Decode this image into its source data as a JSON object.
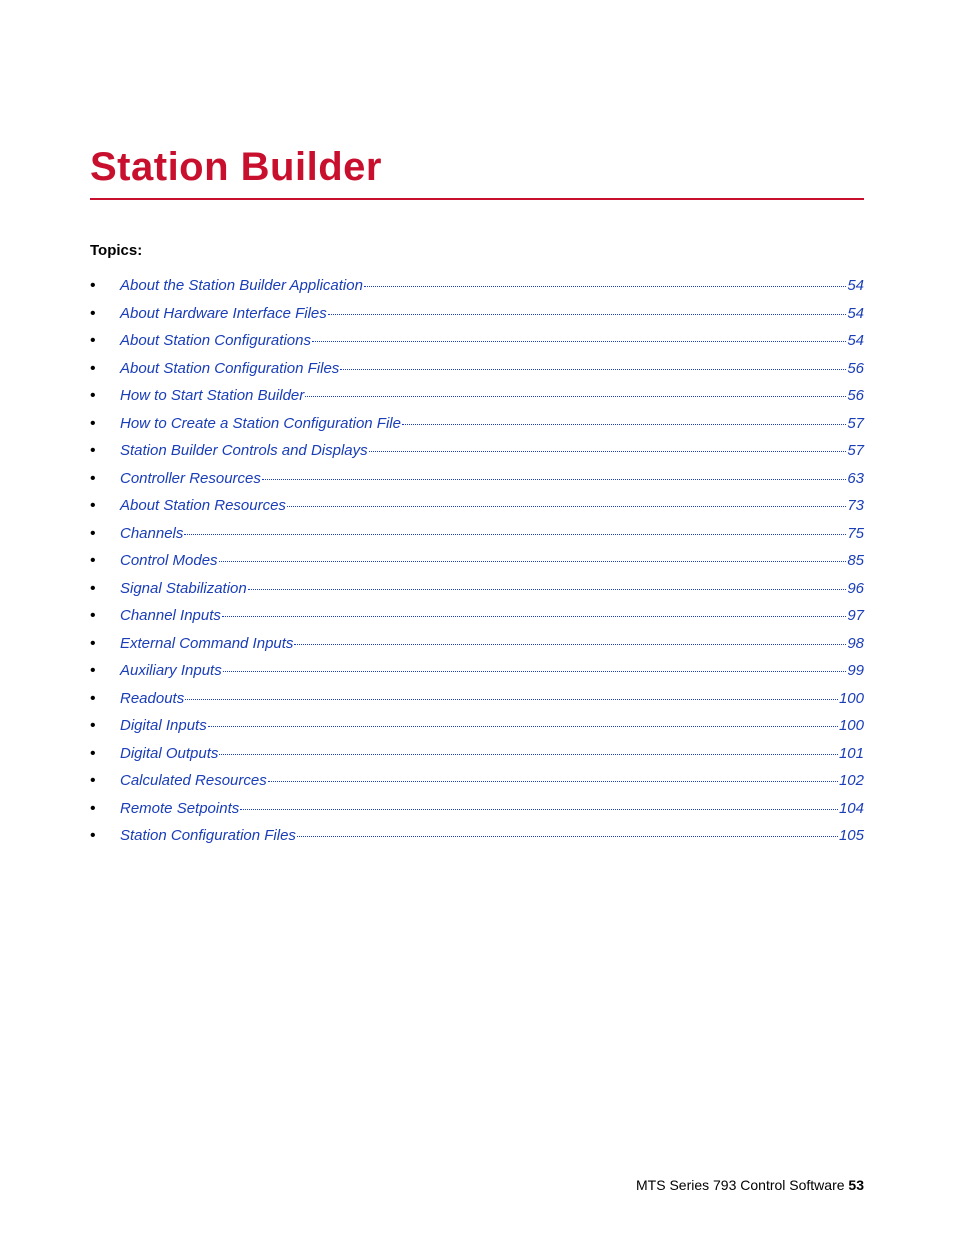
{
  "title": "Station Builder",
  "topics_label": "Topics:",
  "title_color": "#c8102e",
  "link_color": "#1a3db8",
  "text_color": "#000000",
  "background_color": "#ffffff",
  "title_fontsize": 40,
  "body_fontsize": 15,
  "footer_fontsize": 14,
  "toc": [
    {
      "title": "About the Station Builder Application",
      "page": "54"
    },
    {
      "title": "About Hardware Interface Files",
      "page": "54"
    },
    {
      "title": "About Station Configurations",
      "page": "54"
    },
    {
      "title": "About Station Configuration Files",
      "page": "56"
    },
    {
      "title": "How to Start Station Builder",
      "page": "56"
    },
    {
      "title": "How to Create a Station Configuration File",
      "page": "57"
    },
    {
      "title": "Station Builder Controls and Displays",
      "page": "57"
    },
    {
      "title": "Controller Resources",
      "page": "63"
    },
    {
      "title": "About Station Resources",
      "page": "73"
    },
    {
      "title": "Channels",
      "page": "75"
    },
    {
      "title": "Control Modes",
      "page": "85"
    },
    {
      "title": "Signal Stabilization",
      "page": "96"
    },
    {
      "title": "Channel Inputs",
      "page": "97"
    },
    {
      "title": "External Command Inputs",
      "page": "98"
    },
    {
      "title": "Auxiliary Inputs",
      "page": "99"
    },
    {
      "title": "Readouts",
      "page": "100"
    },
    {
      "title": "Digital Inputs",
      "page": "100"
    },
    {
      "title": "Digital Outputs",
      "page": "101"
    },
    {
      "title": "Calculated Resources",
      "page": "102"
    },
    {
      "title": "Remote  Setpoints",
      "page": "104"
    },
    {
      "title": "Station Configuration Files",
      "page": "105"
    }
  ],
  "footer": {
    "text": "MTS Series 793 Control Software",
    "page": "53"
  }
}
